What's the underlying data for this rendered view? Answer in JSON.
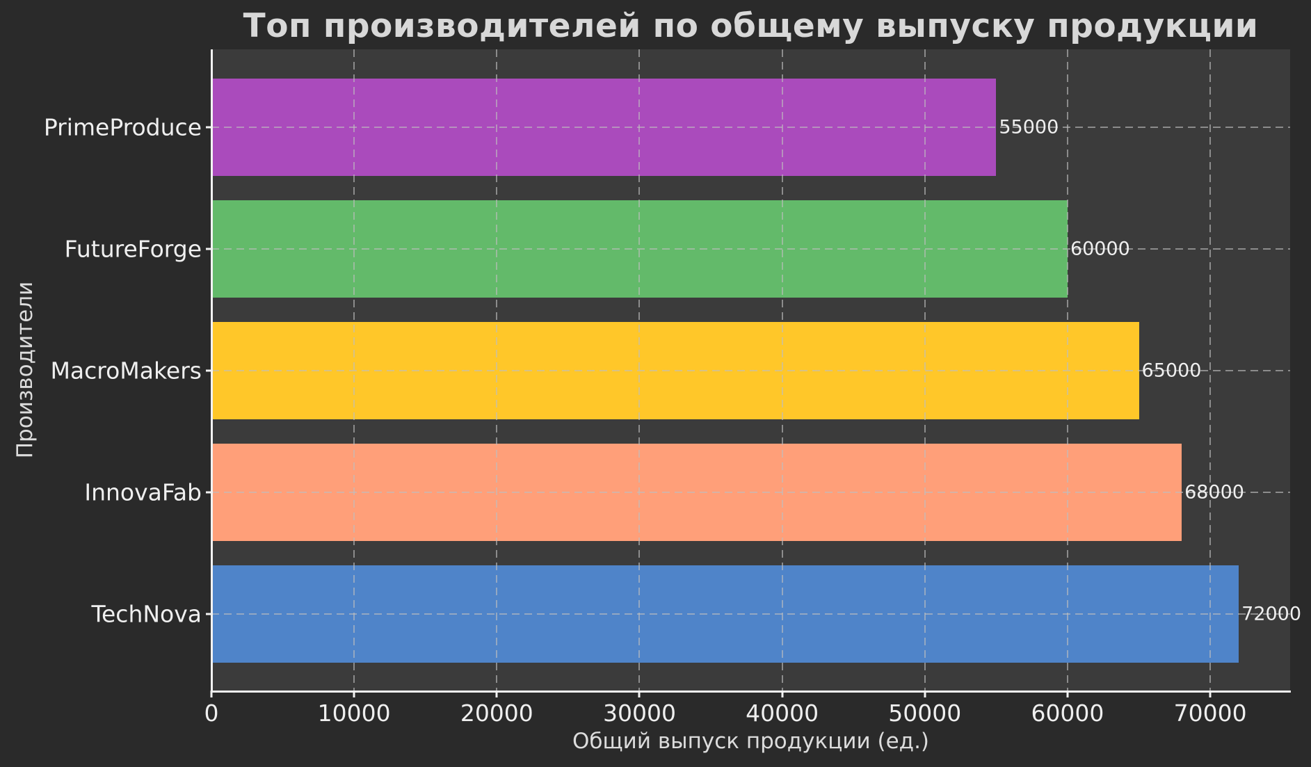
{
  "figure": {
    "background": "#2a2a2a",
    "axes_background": "#3b3b3b"
  },
  "chart_data": {
    "type": "bar",
    "orientation": "horizontal",
    "title": "Топ производителей по общему выпуску продукции",
    "xlabel": "Общий выпуск продукции (ед.)",
    "ylabel": "Производители",
    "categories_top_to_bottom": [
      "PrimeProduce",
      "FutureForge",
      "MacroMakers",
      "InnovaFab",
      "TechNova"
    ],
    "values": [
      55000,
      60000,
      65000,
      68000,
      72000
    ],
    "value_labels": [
      "55000",
      "60000",
      "65000",
      "68000",
      "72000"
    ],
    "bar_colors": [
      "#aa4bbc",
      "#63ba6a",
      "#ffc729",
      "#ff9f79",
      "#4f84c9"
    ],
    "xlim": [
      0,
      75600
    ],
    "xticks": [
      0,
      10000,
      20000,
      30000,
      40000,
      50000,
      60000,
      70000
    ],
    "grid": true,
    "grid_linestyle": "dashed",
    "legend": "none",
    "text_color": "#efefef",
    "title_color": "#d8d8d8",
    "spine_color": "#f2f2f2",
    "grid_color": "#8a8a8a"
  }
}
